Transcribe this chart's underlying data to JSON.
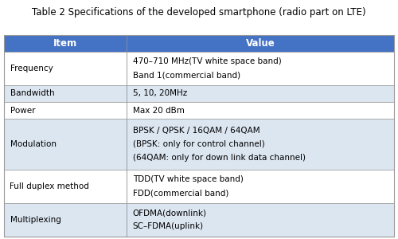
{
  "title": "Table 2 Specifications of the developed smartphone (radio part on LTE)",
  "header": [
    "Item",
    "Value"
  ],
  "header_bg": "#4472C4",
  "header_text_color": "#FFFFFF",
  "col_split": 0.315,
  "rows": [
    {
      "item": "Frequency",
      "value": [
        "470–710 MHz（TV white space band）",
        "Band 1（commercial band）"
      ],
      "value_ascii": [
        "470–710 MHz(TV white space band)",
        "Band 1(commercial band)"
      ],
      "bg": "#FFFFFF",
      "n_lines": 2
    },
    {
      "item": "Bandwidth",
      "value_ascii": [
        "5, 10, 20MHz"
      ],
      "bg": "#DCE6F1",
      "n_lines": 1
    },
    {
      "item": "Power",
      "value_ascii": [
        "Max 20 dBm"
      ],
      "bg": "#FFFFFF",
      "n_lines": 1
    },
    {
      "item": "Modulation",
      "value_ascii": [
        "BPSK / QPSK / 16QAM / 64QAM",
        "(BPSK: only for control channel)",
        "(64QAM: only for down link data channel)"
      ],
      "bg": "#DCE6F1",
      "n_lines": 3
    },
    {
      "item": "Full duplex method",
      "value_ascii": [
        "TDD(TV white space band)",
        "FDD(commercial band)"
      ],
      "bg": "#FFFFFF",
      "n_lines": 2
    },
    {
      "item": "Multiplexing",
      "value_ascii": [
        "OFDMA(downlink)",
        "SC–FDMA(uplink)"
      ],
      "bg": "#DCE6F1",
      "n_lines": 2
    }
  ],
  "border_color": "#999999",
  "title_fontsize": 8.5,
  "header_fontsize": 8.5,
  "cell_fontsize": 7.5,
  "fig_bg": "#FFFFFF"
}
